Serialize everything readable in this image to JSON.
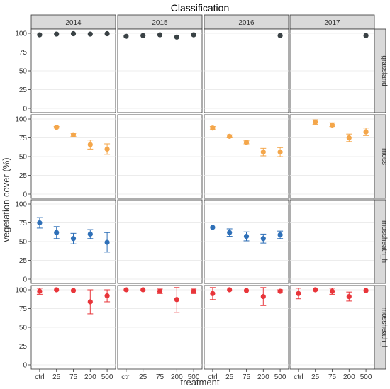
{
  "chart_data": {
    "type": "scatter",
    "title": "Classification",
    "xlabel": "treatment",
    "ylabel": "vegetation cover (%)",
    "ylim": [
      0,
      100
    ],
    "y_ticks": [
      "0",
      "25",
      "50",
      "75",
      "100"
    ],
    "categories": [
      "ctrl",
      "25",
      "75",
      "200",
      "500"
    ],
    "columns": [
      "2014",
      "2015",
      "2016",
      "2017"
    ],
    "rows": [
      {
        "name": "grassland",
        "color": "#3a4245"
      },
      {
        "name": "moss",
        "color": "#f4a64a"
      },
      {
        "name": "mossheath_h",
        "color": "#2f70b8"
      },
      {
        "name": "mossheath_l",
        "color": "#e8353a"
      }
    ],
    "grid": true,
    "facets": [
      {
        "row": "grassland",
        "column": "2014",
        "points": [
          {
            "x": "ctrl",
            "y": 98
          },
          {
            "x": "25",
            "y": 99
          },
          {
            "x": "75",
            "y": 99.5
          },
          {
            "x": "200",
            "y": 99
          },
          {
            "x": "500",
            "y": 99.5
          }
        ]
      },
      {
        "row": "grassland",
        "column": "2015",
        "points": [
          {
            "x": "ctrl",
            "y": 96
          },
          {
            "x": "25",
            "y": 97
          },
          {
            "x": "75",
            "y": 98
          },
          {
            "x": "200",
            "y": 95
          },
          {
            "x": "500",
            "y": 98
          }
        ]
      },
      {
        "row": "grassland",
        "column": "2016",
        "points": [
          {
            "x": "500",
            "y": 97
          }
        ]
      },
      {
        "row": "grassland",
        "column": "2017",
        "points": [
          {
            "x": "500",
            "y": 97
          }
        ]
      },
      {
        "row": "moss",
        "column": "2014",
        "points": [
          {
            "x": "25",
            "y": 89,
            "lo": 88,
            "hi": 90
          },
          {
            "x": "75",
            "y": 79,
            "lo": 77,
            "hi": 81
          },
          {
            "x": "200",
            "y": 66,
            "lo": 60,
            "hi": 72
          },
          {
            "x": "500",
            "y": 60,
            "lo": 53,
            "hi": 67
          }
        ]
      },
      {
        "row": "moss",
        "column": "2015",
        "points": []
      },
      {
        "row": "moss",
        "column": "2016",
        "points": [
          {
            "x": "ctrl",
            "y": 88,
            "lo": 86,
            "hi": 90
          },
          {
            "x": "25",
            "y": 77,
            "lo": 75,
            "hi": 79
          },
          {
            "x": "75",
            "y": 69,
            "lo": 67,
            "hi": 71
          },
          {
            "x": "200",
            "y": 56,
            "lo": 51,
            "hi": 61
          },
          {
            "x": "500",
            "y": 56,
            "lo": 50,
            "hi": 62
          }
        ]
      },
      {
        "row": "moss",
        "column": "2017",
        "points": [
          {
            "x": "25",
            "y": 96,
            "lo": 93,
            "hi": 99
          },
          {
            "x": "75",
            "y": 92,
            "lo": 90,
            "hi": 95
          },
          {
            "x": "200",
            "y": 75,
            "lo": 70,
            "hi": 80
          },
          {
            "x": "500",
            "y": 83,
            "lo": 78,
            "hi": 88
          }
        ]
      },
      {
        "row": "mossheath_h",
        "column": "2014",
        "points": [
          {
            "x": "ctrl",
            "y": 75,
            "lo": 68,
            "hi": 82
          },
          {
            "x": "25",
            "y": 62,
            "lo": 54,
            "hi": 70
          },
          {
            "x": "75",
            "y": 54,
            "lo": 47,
            "hi": 61
          },
          {
            "x": "200",
            "y": 60,
            "lo": 54,
            "hi": 66
          },
          {
            "x": "500",
            "y": 49,
            "lo": 36,
            "hi": 62
          }
        ]
      },
      {
        "row": "mossheath_h",
        "column": "2015",
        "points": []
      },
      {
        "row": "mossheath_h",
        "column": "2016",
        "points": [
          {
            "x": "ctrl",
            "y": 69
          },
          {
            "x": "25",
            "y": 62,
            "lo": 57,
            "hi": 67
          },
          {
            "x": "75",
            "y": 57,
            "lo": 51,
            "hi": 63
          },
          {
            "x": "200",
            "y": 54,
            "lo": 48,
            "hi": 60
          },
          {
            "x": "500",
            "y": 59,
            "lo": 54,
            "hi": 64
          }
        ]
      },
      {
        "row": "mossheath_h",
        "column": "2017",
        "points": []
      },
      {
        "row": "mossheath_l",
        "column": "2014",
        "points": [
          {
            "x": "ctrl",
            "y": 98,
            "lo": 94,
            "hi": 102
          },
          {
            "x": "25",
            "y": 100
          },
          {
            "x": "75",
            "y": 99
          },
          {
            "x": "200",
            "y": 84,
            "lo": 68,
            "hi": 100
          },
          {
            "x": "500",
            "y": 92,
            "lo": 84,
            "hi": 100
          }
        ]
      },
      {
        "row": "mossheath_l",
        "column": "2015",
        "points": [
          {
            "x": "ctrl",
            "y": 100
          },
          {
            "x": "25",
            "y": 100
          },
          {
            "x": "75",
            "y": 98,
            "lo": 95,
            "hi": 101
          },
          {
            "x": "200",
            "y": 87,
            "lo": 70,
            "hi": 103
          },
          {
            "x": "500",
            "y": 98,
            "lo": 95,
            "hi": 101
          }
        ]
      },
      {
        "row": "mossheath_l",
        "column": "2016",
        "points": [
          {
            "x": "ctrl",
            "y": 95,
            "lo": 87,
            "hi": 103
          },
          {
            "x": "25",
            "y": 100
          },
          {
            "x": "75",
            "y": 99
          },
          {
            "x": "200",
            "y": 91,
            "lo": 79,
            "hi": 103
          },
          {
            "x": "500",
            "y": 98,
            "lo": 96,
            "hi": 100
          }
        ]
      },
      {
        "row": "mossheath_l",
        "column": "2017",
        "points": [
          {
            "x": "ctrl",
            "y": 95,
            "lo": 88,
            "hi": 102
          },
          {
            "x": "25",
            "y": 100
          },
          {
            "x": "75",
            "y": 98,
            "lo": 94,
            "hi": 102
          },
          {
            "x": "200",
            "y": 91,
            "lo": 85,
            "hi": 97
          },
          {
            "x": "500",
            "y": 99
          }
        ]
      }
    ]
  }
}
